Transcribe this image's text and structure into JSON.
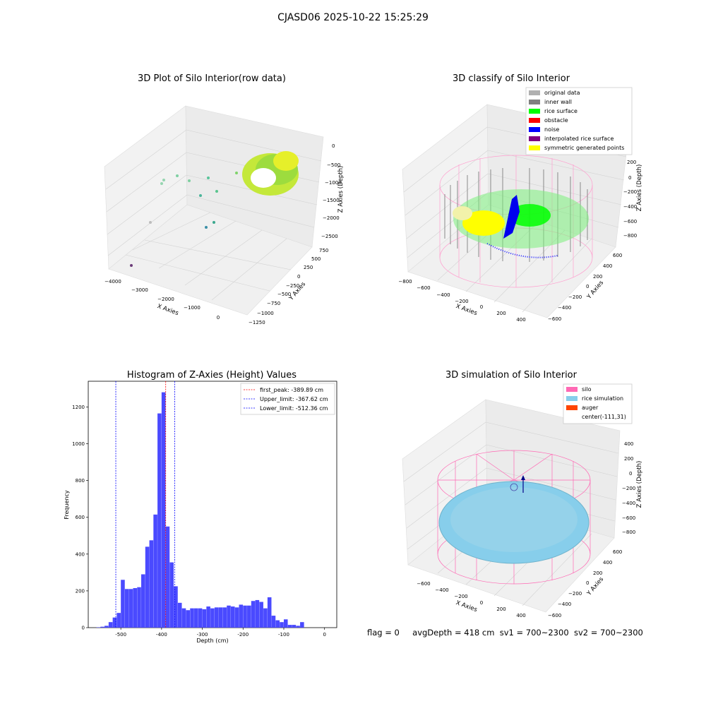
{
  "figure": {
    "suptitle": "CJASD06 2025-10-22 15:25:29",
    "status": {
      "flag": "flag = 0",
      "avg_depth": "avgDepth = 418 cm",
      "sv1": "sv1 = 700~2300",
      "sv2": "sv2 = 700~2300"
    }
  },
  "chart_data": [
    {
      "type": "scatter",
      "projection": "3d",
      "title": "3D Plot of Silo Interior(row data)",
      "xlabel": "X Axies",
      "ylabel": "Y Axies",
      "zlabel": "Z Axies (Depth)",
      "x_ticks": [
        "−4000",
        "−3000",
        "−2000",
        "−1000",
        "0"
      ],
      "y_ticks": [
        "750",
        "500",
        "250",
        "0",
        "−250",
        "−500",
        "−750",
        "−1000",
        "−1250"
      ],
      "z_ticks": [
        "0",
        "−500",
        "−1000",
        "−1500",
        "−2000",
        "−2500"
      ],
      "xlim": [
        -4200,
        300
      ],
      "ylim": [
        -1300,
        800
      ],
      "zlim": [
        -2700,
        100
      ],
      "grid": true,
      "colormap": "viridis",
      "description": "dense ring-shaped cluster of points near x≈0 with a few scattered outliers"
    },
    {
      "type": "scatter",
      "projection": "3d",
      "title": "3D classify of Silo Interior",
      "xlabel": "X Axies",
      "ylabel": "Y Axies",
      "zlabel": "Z Axies (Depth)",
      "x_ticks": [
        "−800",
        "−600",
        "−400",
        "−200",
        "0",
        "200",
        "400"
      ],
      "y_ticks": [
        "600",
        "400",
        "200",
        "0",
        "−200",
        "−400",
        "−600"
      ],
      "z_ticks": [
        "400",
        "200",
        "0",
        "−200",
        "−400",
        "−600",
        "−800"
      ],
      "grid": true,
      "legend_position": "top-right",
      "legend": [
        {
          "label": "original data",
          "color": "#b0b0b0"
        },
        {
          "label": "inner wall",
          "color": "#808080"
        },
        {
          "label": "rice surface",
          "color": "#00ff00"
        },
        {
          "label": "obstacle",
          "color": "#ff0000"
        },
        {
          "label": "noise",
          "color": "#0000ff"
        },
        {
          "label": "interpolated rice surface",
          "color": "#800080"
        },
        {
          "label": "symmetric generated points",
          "color": "#ffff00"
        }
      ]
    },
    {
      "type": "bar",
      "title": "Histogram of Z-Axies (Height) Values",
      "xlabel": "Depth (cm)",
      "ylabel": "Frequency",
      "xlim": [
        -580,
        30
      ],
      "ylim": [
        0,
        1340
      ],
      "x_ticks": [
        -500,
        -400,
        -300,
        -200,
        -100,
        0
      ],
      "y_ticks": [
        0,
        200,
        400,
        600,
        800,
        1000,
        1200
      ],
      "bar_color": "#4a4aff",
      "bin_start": -560,
      "bin_width": 10,
      "values": [
        2,
        5,
        10,
        30,
        55,
        80,
        260,
        210,
        210,
        215,
        220,
        290,
        440,
        475,
        615,
        1165,
        1280,
        550,
        355,
        225,
        135,
        105,
        95,
        105,
        105,
        105,
        100,
        115,
        105,
        110,
        110,
        110,
        120,
        115,
        110,
        125,
        120,
        120,
        145,
        150,
        140,
        105,
        165,
        65,
        40,
        30,
        45,
        15,
        15,
        10,
        30
      ],
      "vlines": [
        {
          "label": "first_peak: -389.89 cm",
          "x": -389.89,
          "color": "#ff0000"
        },
        {
          "label": "Upper_limit: -367.62 cm",
          "x": -367.62,
          "color": "#0000ff"
        },
        {
          "label": "Lower_limit: -512.36 cm",
          "x": -512.36,
          "color": "#0000ff"
        }
      ],
      "legend_position": "top-right"
    },
    {
      "type": "surface",
      "projection": "3d",
      "title": "3D simulation of Silo Interior",
      "xlabel": "X Axies",
      "ylabel": "Y Axies",
      "zlabel": "Z Axies (Depth)",
      "x_ticks": [
        "−600",
        "−400",
        "−200",
        "0",
        "200",
        "400"
      ],
      "y_ticks": [
        "600",
        "400",
        "200",
        "0",
        "−200",
        "−400",
        "−600"
      ],
      "z_ticks": [
        "400",
        "200",
        "0",
        "−200",
        "−400",
        "−600",
        "−800"
      ],
      "grid": true,
      "legend_position": "top-right",
      "legend": [
        {
          "label": "silo",
          "color": "#ff69b4"
        },
        {
          "label": "rice simulation",
          "color": "#87ceeb"
        },
        {
          "label": "auger",
          "color": "#ff4500"
        },
        {
          "label": "center(-111,31)",
          "color": ""
        }
      ]
    }
  ]
}
